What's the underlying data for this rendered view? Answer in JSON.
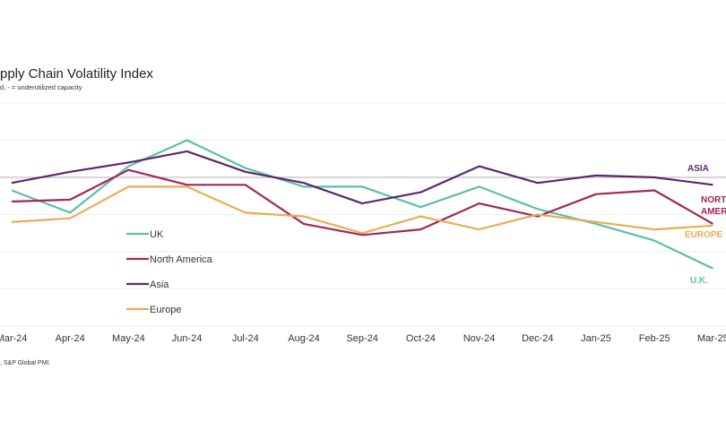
{
  "title": "pply Chain Volatility Index",
  "subtitle": "d, - = underutilized capacity",
  "source": ", S&P Global PMI.",
  "chart_data": {
    "type": "line",
    "title": "pply Chain Volatility Index",
    "subtitle": "d, - = underutilized capacity",
    "xlabel": "",
    "ylabel": "",
    "categories": [
      "Mar-24",
      "Apr-24",
      "May-24",
      "Jun-24",
      "Jul-24",
      "Aug-24",
      "Sep-24",
      "Oct-24",
      "Nov-24",
      "Dec-24",
      "Jan-25",
      "Feb-25",
      "Mar-25"
    ],
    "ylim": [
      -4,
      2
    ],
    "grid": true,
    "zero_line": true,
    "legend_placement": "center-left",
    "series": [
      {
        "name": "UK",
        "end_label": "U.K.",
        "color": "#5dbfa8",
        "values": [
          -0.35,
          -0.95,
          0.3,
          1.0,
          0.25,
          -0.25,
          -0.25,
          -0.8,
          -0.25,
          -0.85,
          -1.25,
          -1.7,
          -2.45
        ]
      },
      {
        "name": "North America",
        "end_label": [
          "NORT",
          "AMER"
        ],
        "color": "#a3265a",
        "values": [
          -0.65,
          -0.6,
          0.2,
          -0.2,
          -0.2,
          -1.25,
          -1.55,
          -1.4,
          -0.7,
          -1.05,
          -0.45,
          -0.35,
          -1.25
        ]
      },
      {
        "name": "Asia",
        "end_label": "ASIA",
        "color": "#5e2670",
        "values": [
          -0.15,
          0.15,
          0.4,
          0.7,
          0.15,
          -0.15,
          -0.7,
          -0.4,
          0.3,
          -0.15,
          0.05,
          0.0,
          -0.2
        ]
      },
      {
        "name": "Europe",
        "end_label": "EUROPE",
        "color": "#e8ad55",
        "values": [
          -1.2,
          -1.1,
          -0.25,
          -0.25,
          -0.95,
          -1.05,
          -1.5,
          -1.05,
          -1.4,
          -1.0,
          -1.2,
          -1.4,
          -1.3
        ]
      }
    ]
  }
}
